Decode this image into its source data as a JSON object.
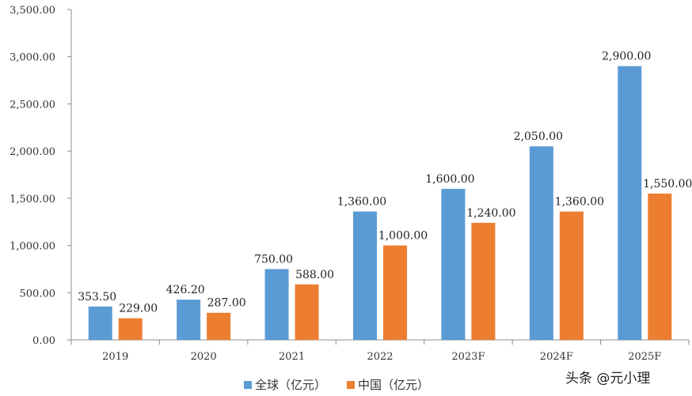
{
  "chart_data": {
    "type": "bar",
    "categories": [
      "2019",
      "2020",
      "2021",
      "2022",
      "2023F",
      "2024F",
      "2025F"
    ],
    "series": [
      {
        "name": "全球（亿元）",
        "color": "#5b9bd5",
        "values": [
          353.5,
          426.2,
          750,
          1360,
          1600,
          2050,
          2900
        ]
      },
      {
        "name": "中国（亿元）",
        "color": "#ed7d31",
        "values": [
          229,
          287,
          588,
          1000,
          1240,
          1360,
          1550
        ]
      }
    ],
    "data_labels": [
      [
        "353.50",
        "426.20",
        "750.00",
        "1,360.00",
        "1,600.00",
        "2,050.00",
        "2,900.00"
      ],
      [
        "229.00",
        "287.00",
        "588.00",
        "1,000.00",
        "1,240.00",
        "1,360.00",
        "1,550.00"
      ]
    ],
    "yticks": [
      "0.00",
      "500.00",
      "1,000.00",
      "1,500.00",
      "2,000.00",
      "2,500.00",
      "3,000.00",
      "3,500.00"
    ],
    "ylim": [
      0,
      3500
    ],
    "grid": false,
    "legend_position": "bottom"
  },
  "watermark": "头条 @元小理"
}
